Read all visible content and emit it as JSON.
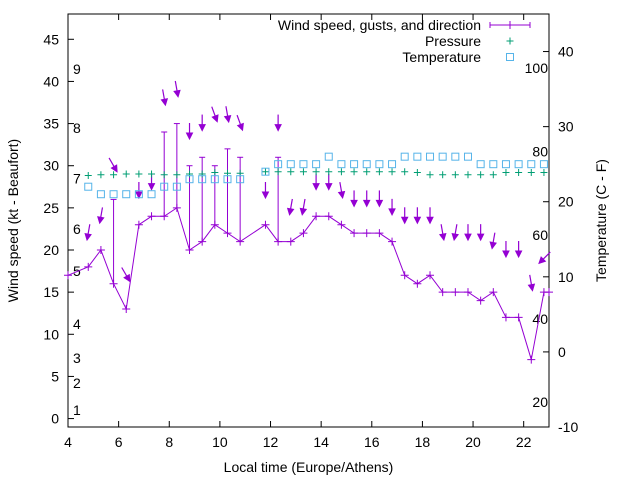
{
  "chart_data": {
    "type": "line",
    "title": "",
    "xlabel": "Local time (Europe/Athens)",
    "ylabel": "Wind speed (kt - Beaufort)",
    "y2label": "Temperature (C - F)",
    "xlim": [
      4,
      23
    ],
    "ylim": [
      -1,
      48
    ],
    "y2lim": [
      -10,
      45
    ],
    "x_ticks": [
      4,
      6,
      8,
      10,
      12,
      14,
      16,
      18,
      20,
      22
    ],
    "y_ticks": [
      0,
      5,
      10,
      15,
      20,
      25,
      30,
      35,
      40,
      45
    ],
    "y2_ticks": [
      -10,
      0,
      10,
      20,
      30,
      40
    ],
    "beaufort_labels": [
      {
        "text": "1",
        "y": 1
      },
      {
        "text": "2",
        "y": 4.2
      },
      {
        "text": "3",
        "y": 7.2
      },
      {
        "text": "4",
        "y": 11.2
      },
      {
        "text": "5",
        "y": 17.5
      },
      {
        "text": "6",
        "y": 22.5
      },
      {
        "text": "7",
        "y": 28.5
      },
      {
        "text": "8",
        "y": 34.5
      },
      {
        "text": "9",
        "y": 41.5
      }
    ],
    "fahrenheit_labels": [
      {
        "text": "20",
        "y2": -6.7
      },
      {
        "text": "40",
        "y2": 4.4
      },
      {
        "text": "60",
        "y2": 15.6
      },
      {
        "text": "80",
        "y2": 26.7
      },
      {
        "text": "100",
        "y2": 37.8
      }
    ],
    "legend": {
      "position": "top-right",
      "entries": [
        {
          "label": "Wind speed, gusts, and direction",
          "color": "#9400d3",
          "marker": "plus-errorbar"
        },
        {
          "label": "Pressure",
          "color": "#009e73",
          "marker": "plus"
        },
        {
          "label": "Temperature",
          "color": "#56b4e9",
          "marker": "square"
        }
      ]
    },
    "series": [
      {
        "name": "Wind speed, gusts, and direction",
        "color": "#9400d3",
        "x": [
          4,
          4.8,
          5.3,
          5.8,
          6.3,
          6.8,
          7.3,
          7.8,
          8.3,
          8.8,
          9.3,
          9.8,
          10.3,
          10.8,
          11.8,
          12.3,
          12.8,
          13.3,
          13.8,
          14.3,
          14.8,
          15.3,
          15.8,
          16.3,
          16.8,
          17.3,
          17.8,
          18.3,
          18.8,
          19.3,
          19.8,
          20.3,
          20.8,
          21.3,
          21.8,
          22.3,
          22.8,
          23
        ],
        "y": [
          17,
          18,
          20,
          16,
          13,
          23,
          24,
          24,
          25,
          20,
          21,
          23,
          22,
          21,
          23,
          21,
          21,
          22,
          24,
          24,
          23,
          22,
          22,
          22,
          21,
          17,
          16,
          17,
          15,
          15,
          15,
          14,
          15,
          12,
          12,
          7,
          15,
          15
        ],
        "gusts": [
          null,
          null,
          null,
          26,
          null,
          null,
          null,
          34,
          35,
          30,
          31,
          30,
          32,
          31,
          null,
          31,
          null,
          null,
          null,
          null,
          null,
          null,
          null,
          null,
          null,
          null,
          null,
          null,
          null,
          null,
          null,
          null,
          null,
          null,
          null,
          null,
          null,
          null
        ]
      },
      {
        "name": "Pressure",
        "color": "#009e73",
        "x": [
          4.8,
          5.3,
          5.8,
          6.3,
          6.8,
          7.3,
          7.8,
          8.3,
          8.8,
          9.3,
          9.8,
          10.3,
          10.8,
          11.8,
          12.3,
          12.8,
          13.3,
          13.8,
          14.3,
          14.8,
          15.3,
          15.8,
          16.3,
          16.8,
          17.3,
          17.8,
          18.3,
          18.8,
          19.3,
          19.8,
          20.3,
          20.8,
          21.3,
          21.8,
          22.3,
          22.8
        ],
        "y2": [
          23.5,
          23.6,
          23.6,
          23.7,
          23.7,
          23.7,
          23.6,
          23.6,
          23.7,
          23.7,
          23.9,
          23.8,
          23.8,
          24.0,
          24.0,
          24.0,
          24.0,
          24.0,
          24.0,
          24.0,
          24.0,
          24.0,
          24.0,
          24.0,
          24.0,
          23.9,
          23.6,
          23.6,
          23.6,
          23.6,
          23.6,
          23.6,
          23.9,
          23.9,
          23.9,
          23.9
        ]
      },
      {
        "name": "Temperature",
        "color": "#56b4e9",
        "x": [
          4.8,
          5.3,
          5.8,
          6.3,
          6.8,
          7.3,
          7.8,
          8.3,
          8.8,
          9.3,
          9.8,
          10.3,
          10.8,
          11.8,
          12.3,
          12.8,
          13.3,
          13.8,
          14.3,
          14.8,
          15.3,
          15.8,
          16.3,
          16.8,
          17.3,
          17.8,
          18.3,
          18.8,
          19.3,
          19.8,
          20.3,
          20.8,
          21.3,
          21.8,
          22.3,
          22.8
        ],
        "y2": [
          22,
          21,
          21,
          21,
          21,
          21,
          22,
          22,
          23,
          23,
          23,
          23,
          23,
          24,
          25,
          25,
          25,
          25,
          26,
          25,
          25,
          25,
          25,
          25,
          26,
          26,
          26,
          26,
          26,
          26,
          25,
          25,
          25,
          25,
          25,
          25
        ]
      }
    ],
    "wind_direction_arrows": {
      "color": "#9400d3",
      "x": [
        4.8,
        5.3,
        5.8,
        6.3,
        6.8,
        7.3,
        7.8,
        8.3,
        8.8,
        9.3,
        9.8,
        10.3,
        10.8,
        11.8,
        12.3,
        12.8,
        13.3,
        13.8,
        14.3,
        14.8,
        15.3,
        15.8,
        16.3,
        16.8,
        17.3,
        17.8,
        18.3,
        18.8,
        19.3,
        19.8,
        20.3,
        20.8,
        21.3,
        21.8,
        22.3,
        22.8
      ],
      "y": [
        22,
        24,
        30,
        17,
        27,
        28,
        38,
        39,
        34,
        35,
        36,
        36,
        35,
        27,
        35,
        25,
        25,
        28,
        28,
        27,
        26,
        26,
        26,
        25,
        24,
        24,
        24,
        22,
        22,
        22,
        22,
        21,
        20,
        20,
        16,
        19
      ],
      "angle_deg": [
        10,
        10,
        -30,
        -30,
        0,
        0,
        -10,
        -10,
        0,
        0,
        -20,
        -10,
        -20,
        0,
        0,
        10,
        10,
        0,
        0,
        -10,
        0,
        0,
        0,
        0,
        0,
        0,
        0,
        -10,
        10,
        0,
        0,
        10,
        0,
        0,
        -10,
        45
      ]
    }
  }
}
